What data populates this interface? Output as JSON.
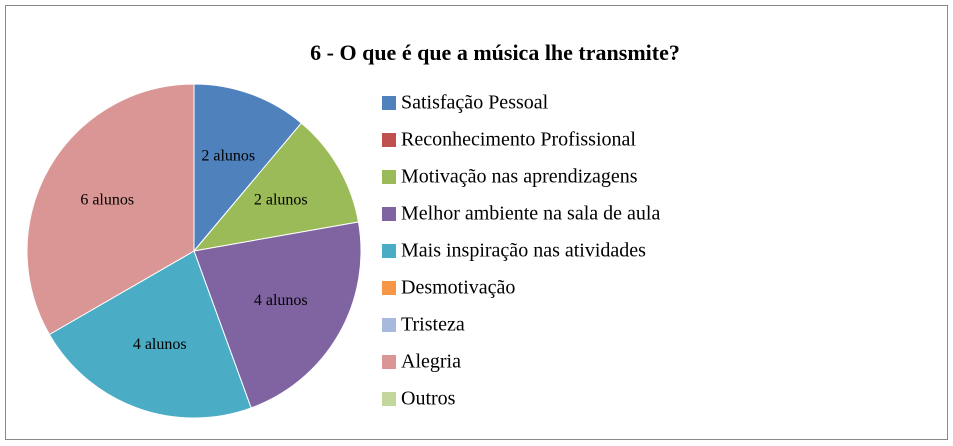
{
  "chart_data": {
    "type": "pie",
    "title": "6 - O que é que a música lhe transmite?",
    "categories": [
      "Satisfação Pessoal",
      "Reconhecimento Profissional",
      "Motivação nas aprendizagens",
      "Melhor ambiente na sala de aula",
      "Mais inspiração nas atividades",
      "Desmotivação",
      "Tristeza",
      "Alegria",
      "Outros"
    ],
    "values": [
      2,
      0,
      2,
      4,
      4,
      0,
      0,
      6,
      0
    ],
    "value_labels": [
      "2 alunos",
      null,
      "2 alunos",
      "4 alunos",
      "4 alunos",
      null,
      null,
      "6 alunos",
      null
    ],
    "colors": [
      "#4f81bd",
      "#c0504d",
      "#9bbb59",
      "#8064a2",
      "#4bacc6",
      "#f79646",
      "#a7b9dd",
      "#d99694",
      "#c3d69b"
    ],
    "legend": "right"
  }
}
